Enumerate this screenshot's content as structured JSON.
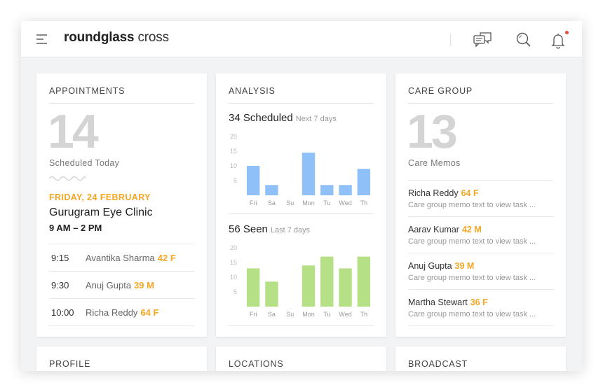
{
  "header": {
    "logo_bold": "roundglass",
    "logo_light": " cross"
  },
  "appointments": {
    "title": "APPOINTMENTS",
    "count": "14",
    "count_label": "Scheduled Today",
    "date": "FRIDAY, 24 FEBRUARY",
    "clinic": "Gurugram Eye Clinic",
    "hours": "9 AM – 2 PM",
    "items": [
      {
        "time": "9:15",
        "name": "Avantika Sharma",
        "age": "42 F"
      },
      {
        "time": "9:30",
        "name": "Anuj Gupta",
        "age": "39 M"
      },
      {
        "time": "10:00",
        "name": "Richa Reddy",
        "age": "64 F"
      }
    ]
  },
  "analysis": {
    "title": "ANALYSIS",
    "scheduled_heading": "34 Scheduled",
    "scheduled_sub": "Next 7 days",
    "seen_heading": "56 Seen",
    "seen_sub": "Last 7 days"
  },
  "chart_data": [
    {
      "type": "bar",
      "categories": [
        "Fri",
        "Sa",
        "Su",
        "Mon",
        "Tu",
        "Wed",
        "Th"
      ],
      "values": [
        10,
        3.5,
        0,
        14.5,
        3.5,
        3.5,
        9
      ],
      "ylim": [
        0,
        20
      ],
      "yticks": [
        "5",
        "10",
        "15",
        "20"
      ],
      "color": "#90c0f8"
    },
    {
      "type": "bar",
      "categories": [
        "Fri",
        "Sa",
        "Su",
        "Mon",
        "Tu",
        "Wed",
        "Th"
      ],
      "values": [
        13,
        8.5,
        0,
        14,
        17,
        13,
        17
      ],
      "ylim": [
        0,
        20
      ],
      "yticks": [
        "5",
        "10",
        "15",
        "20"
      ],
      "color": "#b6e086"
    }
  ],
  "care_group": {
    "title": "CARE GROUP",
    "count": "13",
    "count_label": "Care Memos",
    "memos": [
      {
        "name": "Richa Reddy",
        "age": "64 F",
        "text": "Care group memo text to view task ..."
      },
      {
        "name": "Aarav Kumar",
        "age": "42 M",
        "text": "Care group memo text to view task ..."
      },
      {
        "name": "Anuj Gupta",
        "age": "39 M",
        "text": "Care group memo text to view task ..."
      },
      {
        "name": "Martha Stewart",
        "age": "36 F",
        "text": "Care group memo text to view task ..."
      }
    ]
  },
  "bottom_cards": {
    "profile": "PROFILE",
    "locations": "LOCATIONS",
    "broadcast": "BROADCAST"
  },
  "icons": {
    "menu": "menu-icon",
    "messages": "chat-bubbles-icon",
    "search": "search-icon",
    "notifications": "bell-icon"
  },
  "colors": {
    "accent": "#f5a623",
    "notification": "#e44d3a",
    "scheduled_bars": "#90c0f8",
    "seen_bars": "#b6e086"
  }
}
